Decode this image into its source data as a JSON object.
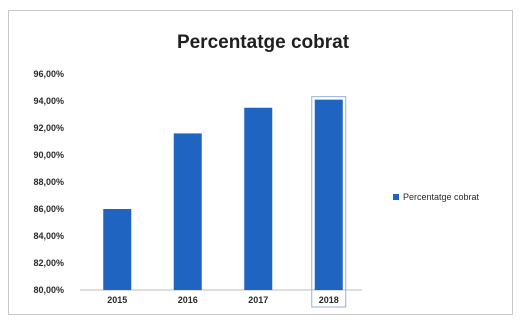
{
  "chart_data": {
    "type": "bar",
    "title": "Percentatge cobrat",
    "categories": [
      "2015",
      "2016",
      "2017",
      "2018"
    ],
    "series": [
      {
        "name": "Percentatge cobrat",
        "values": [
          86.0,
          91.6,
          93.5,
          94.1
        ],
        "color": "#1f64c0"
      }
    ],
    "ylim": [
      80,
      96
    ],
    "yticks": [
      80,
      82,
      84,
      86,
      88,
      90,
      92,
      94,
      96
    ],
    "ytick_labels": [
      "80,00%",
      "82,00%",
      "84,00%",
      "86,00%",
      "88,00%",
      "90,00%",
      "92,00%",
      "94,00%",
      "96,00%"
    ],
    "selected_category": "2018",
    "legend_position": "right",
    "grid": false
  }
}
